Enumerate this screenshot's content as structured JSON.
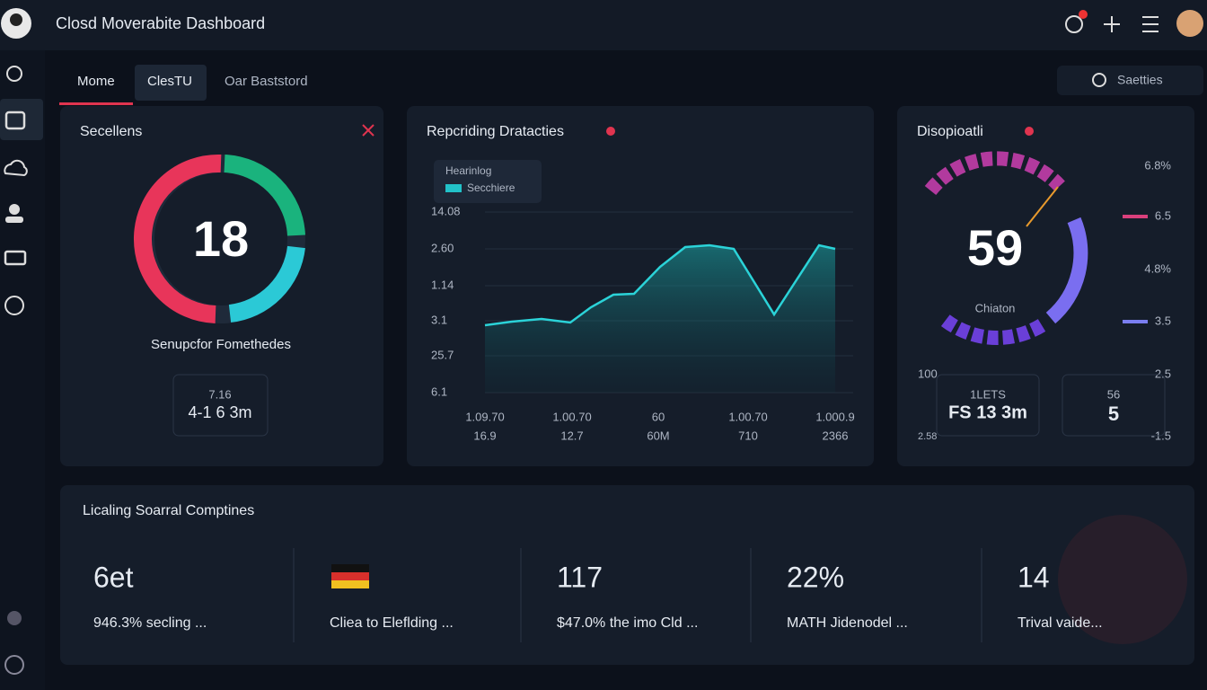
{
  "header": {
    "title": "Closd Moverabite Dashboard"
  },
  "tabs": [
    "Mome",
    "ClesTU",
    "Oar Baststord"
  ],
  "search": {
    "placeholder": "Saetties"
  },
  "panels": [
    {
      "title": "Secellens",
      "center_value": "18",
      "caption": "Senupcfor Fomethedes",
      "box": {
        "line1": "7.16",
        "line2": "4-1 6 3m"
      }
    },
    {
      "title": "Repcriding Dratacties",
      "legend": {
        "title": "Hearinlog",
        "item": "Secchiere"
      },
      "y_labels": [
        "14.08",
        "2.60",
        "1.14",
        "3.1",
        "25.7",
        "6.1"
      ],
      "x_labels_top": [
        "1.09.70",
        "1.00.70",
        "60",
        "1.00.70",
        "1.000.9"
      ],
      "x_labels_bottom": [
        "16.9",
        "12.7",
        "60M",
        "710",
        "2366"
      ]
    },
    {
      "title": "Disopioatli",
      "center_value": "59",
      "caption": "Chiaton",
      "right_labels": [
        "6.8%",
        "6.5",
        "4.8%",
        "3.5",
        "2.5",
        "-1.5"
      ],
      "left_labels": [
        "100",
        "2.58"
      ],
      "box1": {
        "line1": "1LETS",
        "line2": "FS 13 3m"
      },
      "box2": {
        "line1": "56",
        "line2": "5"
      }
    }
  ],
  "summary": {
    "title": "Licaling Soarral Comptines",
    "items": [
      {
        "value": "6et",
        "text": "946.3% secling ..."
      },
      {
        "text": "Cliea to Eleflding ..."
      },
      {
        "value": "117",
        "text": "$47.0% the imo Cld ..."
      },
      {
        "value": "22%",
        "text": "MATH Jidenodel ..."
      },
      {
        "value": "14",
        "text": "Trival vaide..."
      }
    ]
  }
}
